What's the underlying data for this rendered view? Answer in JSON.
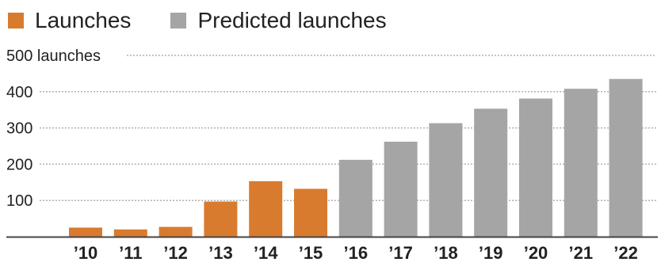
{
  "legend": {
    "actual_label": "Launches",
    "predicted_label": "Predicted launches"
  },
  "colors": {
    "actual": "#d97b2f",
    "predicted": "#a5a5a5",
    "grid": "#b0b0b0",
    "axis": "#444444"
  },
  "chart_data": {
    "type": "bar",
    "title": "",
    "xlabel": "",
    "ylabel": "",
    "ylim": [
      0,
      500
    ],
    "yticks": [
      {
        "value": 100,
        "label": "100"
      },
      {
        "value": 200,
        "label": "200"
      },
      {
        "value": 300,
        "label": "300"
      },
      {
        "value": 400,
        "label": "400"
      },
      {
        "value": 500,
        "label": "500 launches"
      }
    ],
    "grid": true,
    "legend_position": "top-left",
    "categories": [
      "’10",
      "’11",
      "’12",
      "’13",
      "’14",
      "’15",
      "’16",
      "’17",
      "’18",
      "’19",
      "’20",
      "’21",
      "’22"
    ],
    "series": [
      {
        "name": "Launches",
        "values": [
          25,
          20,
          27,
          97,
          153,
          132,
          null,
          null,
          null,
          null,
          null,
          null,
          null
        ]
      },
      {
        "name": "Predicted launches",
        "values": [
          null,
          null,
          null,
          null,
          null,
          null,
          212,
          262,
          313,
          353,
          381,
          408,
          435
        ]
      }
    ]
  }
}
